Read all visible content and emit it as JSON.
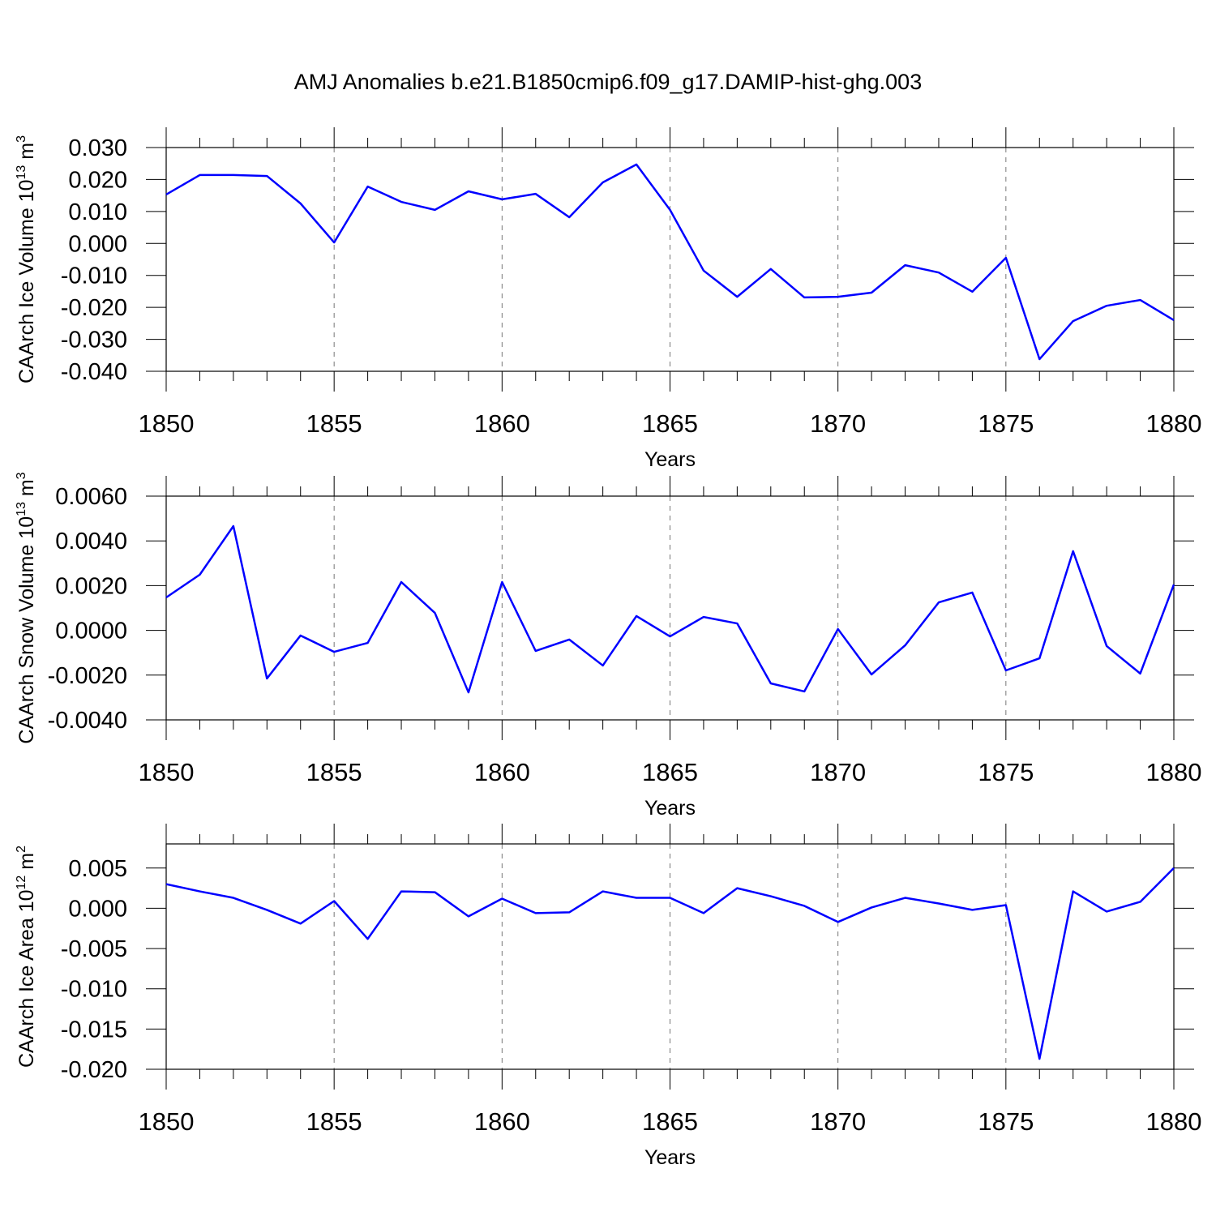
{
  "title": "AMJ Anomalies b.e21.B1850cmip6.f09_g17.DAMIP-hist-ghg.003",
  "chart_data": [
    {
      "type": "line",
      "ylabel": [
        "CAArch Ice Volume 10",
        "13",
        " m",
        "3"
      ],
      "xlabel": "Years",
      "x": [
        1850,
        1851,
        1852,
        1853,
        1854,
        1855,
        1856,
        1857,
        1858,
        1859,
        1860,
        1861,
        1862,
        1863,
        1864,
        1865,
        1866,
        1867,
        1868,
        1869,
        1870,
        1871,
        1872,
        1873,
        1874,
        1875,
        1876,
        1877,
        1878,
        1879,
        1880
      ],
      "series": [
        {
          "color": "#0000ff",
          "values": [
            0.0153,
            0.0214,
            0.0214,
            0.0211,
            0.0125,
            0.0003,
            0.0178,
            0.013,
            0.0105,
            0.0163,
            0.0138,
            0.0155,
            0.0082,
            0.0191,
            0.0247,
            0.0105,
            -0.0085,
            -0.0167,
            -0.008,
            -0.0169,
            -0.0167,
            -0.0154,
            -0.0068,
            -0.0091,
            -0.0151,
            -0.0045,
            -0.0362,
            -0.0243,
            -0.0195,
            -0.0177,
            -0.024
          ]
        }
      ],
      "xlim": [
        1850,
        1880
      ],
      "xticks": [
        1850,
        1855,
        1860,
        1865,
        1870,
        1875,
        1880
      ],
      "xminorticks": [
        1851,
        1852,
        1853,
        1854,
        1856,
        1857,
        1858,
        1859,
        1861,
        1862,
        1863,
        1864,
        1866,
        1867,
        1868,
        1869,
        1871,
        1872,
        1873,
        1874,
        1876,
        1877,
        1878,
        1879
      ],
      "ylim": [
        -0.04,
        0.03
      ],
      "yticks": [
        {
          "value": 0.03,
          "label": "0.030"
        },
        {
          "value": 0.02,
          "label": "0.020"
        },
        {
          "value": 0.01,
          "label": "0.010"
        },
        {
          "value": 0,
          "label": "0.000"
        },
        {
          "value": -0.01,
          "label": "-0.010"
        },
        {
          "value": -0.02,
          "label": "-0.020"
        },
        {
          "value": -0.03,
          "label": "-0.030"
        },
        {
          "value": -0.04,
          "label": "-0.040"
        }
      ],
      "xgrid": true
    },
    {
      "type": "line",
      "ylabel": [
        "CAArch Snow Volume 10",
        "13",
        " m",
        "3"
      ],
      "xlabel": "Years",
      "x": [
        1850,
        1851,
        1852,
        1853,
        1854,
        1855,
        1856,
        1857,
        1858,
        1859,
        1860,
        1861,
        1862,
        1863,
        1864,
        1865,
        1866,
        1867,
        1868,
        1869,
        1870,
        1871,
        1872,
        1873,
        1874,
        1875,
        1876,
        1877,
        1878,
        1879,
        1880
      ],
      "series": [
        {
          "color": "#0000ff",
          "values": [
            0.00147,
            0.00249,
            0.00466,
            -0.00215,
            -0.00023,
            -0.00096,
            -0.00056,
            0.00216,
            0.00078,
            -0.00277,
            0.00216,
            -0.00092,
            -0.00041,
            -0.00157,
            0.00064,
            -0.00027,
            0.0006,
            0.00031,
            -0.00237,
            -0.00273,
            6e-05,
            -0.00197,
            -0.00067,
            0.00125,
            0.00169,
            -0.00179,
            -0.00125,
            0.00354,
            -0.0007,
            -0.00193,
            0.00205
          ]
        }
      ],
      "xlim": [
        1850,
        1880
      ],
      "xticks": [
        1850,
        1855,
        1860,
        1865,
        1870,
        1875,
        1880
      ],
      "xminorticks": [
        1851,
        1852,
        1853,
        1854,
        1856,
        1857,
        1858,
        1859,
        1861,
        1862,
        1863,
        1864,
        1866,
        1867,
        1868,
        1869,
        1871,
        1872,
        1873,
        1874,
        1876,
        1877,
        1878,
        1879
      ],
      "ylim": [
        -0.004,
        0.006
      ],
      "yticks": [
        {
          "value": 0.006,
          "label": "0.0060"
        },
        {
          "value": 0.004,
          "label": "0.0040"
        },
        {
          "value": 0.002,
          "label": "0.0020"
        },
        {
          "value": 0,
          "label": "0.0000"
        },
        {
          "value": -0.002,
          "label": "-0.0020"
        },
        {
          "value": -0.004,
          "label": "-0.0040"
        }
      ],
      "xgrid": true
    },
    {
      "type": "line",
      "ylabel": [
        "CAArch Ice Area 10",
        "12",
        " m",
        "2"
      ],
      "xlabel": "Years",
      "x": [
        1850,
        1851,
        1852,
        1853,
        1854,
        1855,
        1856,
        1857,
        1858,
        1859,
        1860,
        1861,
        1862,
        1863,
        1864,
        1865,
        1866,
        1867,
        1868,
        1869,
        1870,
        1871,
        1872,
        1873,
        1874,
        1875,
        1876,
        1877,
        1878,
        1879,
        1880
      ],
      "series": [
        {
          "color": "#0000ff",
          "values": [
            0.003,
            0.0021,
            0.0013,
            -0.0002,
            -0.0019,
            0.0009,
            -0.0038,
            0.0021,
            0.002,
            -0.001,
            0.0012,
            -0.0006,
            -0.0005,
            0.0021,
            0.0013,
            0.0013,
            -0.0006,
            0.0025,
            0.0015,
            0.0003,
            -0.0017,
            0.0001,
            0.0013,
            0.0006,
            -0.0002,
            0.0004,
            -0.0187,
            0.0021,
            -0.0004,
            0.0008,
            0.005
          ]
        }
      ],
      "xlim": [
        1850,
        1880
      ],
      "xticks": [
        1850,
        1855,
        1860,
        1865,
        1870,
        1875,
        1880
      ],
      "xminorticks": [
        1851,
        1852,
        1853,
        1854,
        1856,
        1857,
        1858,
        1859,
        1861,
        1862,
        1863,
        1864,
        1866,
        1867,
        1868,
        1869,
        1871,
        1872,
        1873,
        1874,
        1876,
        1877,
        1878,
        1879
      ],
      "ylim": [
        -0.02,
        0.008
      ],
      "yticks": [
        {
          "value": 0.005,
          "label": "0.005"
        },
        {
          "value": 0,
          "label": "0.000"
        },
        {
          "value": -0.005,
          "label": "-0.005"
        },
        {
          "value": -0.01,
          "label": "-0.010"
        },
        {
          "value": -0.015,
          "label": "-0.015"
        },
        {
          "value": -0.02,
          "label": "-0.020"
        }
      ],
      "xgrid": true
    }
  ]
}
